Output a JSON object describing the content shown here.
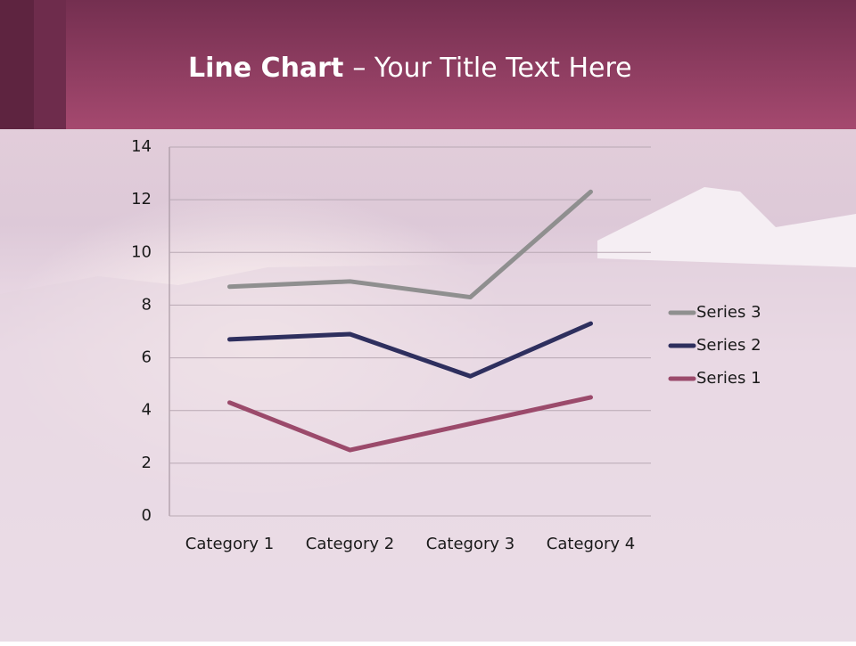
{
  "chart_data": {
    "type": "line",
    "title": [
      "Line Chart",
      "– Your Title Text Here"
    ],
    "categories": [
      "Category 1",
      "Category 2",
      "Category 3",
      "Category 4"
    ],
    "series": [
      {
        "name": "Series 1",
        "color": "#9b4a6b",
        "values": [
          4.3,
          2.5,
          3.5,
          4.5
        ]
      },
      {
        "name": "Series 2",
        "color": "#2e2f5e",
        "values": [
          6.7,
          6.9,
          5.3,
          7.3
        ]
      },
      {
        "name": "Series 3",
        "color": "#8f8f8f",
        "values": [
          8.7,
          8.9,
          8.3,
          12.3
        ]
      }
    ],
    "ylim": [
      0,
      14
    ],
    "yticks": [
      0,
      2,
      4,
      6,
      8,
      10,
      12,
      14
    ],
    "grid": true,
    "legend": "right"
  }
}
